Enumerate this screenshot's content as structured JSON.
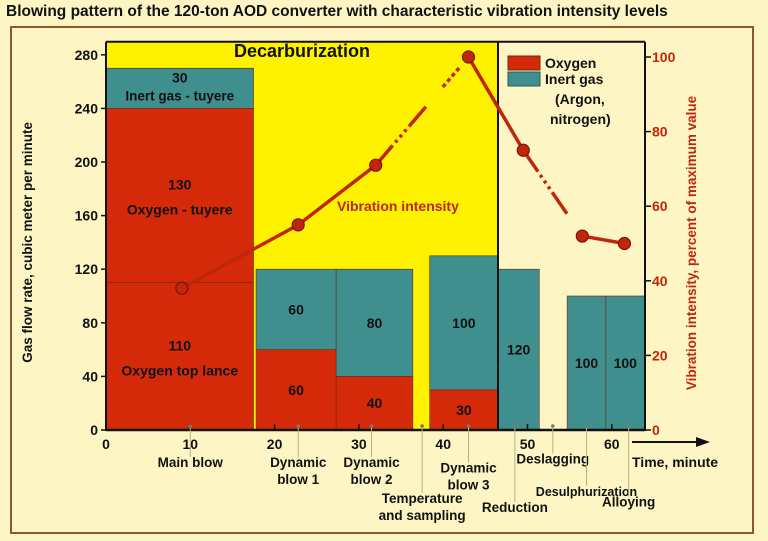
{
  "title": "Blowing pattern of the 120-ton AOD converter with characteristic vibration intensity levels",
  "chart_data": {
    "type": "bar",
    "ylabel": "Gas flow rate, cubic meter per minute",
    "y2label": "Vibration intensity, percent of maximum value",
    "xlabel": "Time, minute",
    "xlim": [
      0,
      65
    ],
    "ylim": [
      0,
      280
    ],
    "y2lim": [
      0,
      100
    ],
    "xticks": [
      0,
      10,
      20,
      30,
      40,
      50,
      60
    ],
    "yticks": [
      0,
      40,
      80,
      120,
      160,
      200,
      240,
      280
    ],
    "y2ticks": [
      0,
      20,
      40,
      60,
      80,
      100
    ],
    "region": {
      "label": "Decarburization",
      "x": [
        0,
        46.5
      ],
      "color": "#fff200"
    },
    "legend": {
      "position": "top-right",
      "items": [
        {
          "label": "Oxygen",
          "color": "#d42a0a"
        },
        {
          "label": "Inert gas (Argon, nitrogen)",
          "color": "#3f8f8f"
        }
      ]
    },
    "colors": {
      "oxygen": "#d42a0a",
      "inert": "#3f8f8f",
      "vibration": "#c0260a"
    },
    "segments": [
      {
        "x": [
          0,
          17.5
        ],
        "stack": [
          {
            "gas": "oxygen",
            "value": 110,
            "label": "110",
            "sub": "Oxygen top lance"
          },
          {
            "gas": "oxygen",
            "value": 130,
            "label": "130",
            "sub": "Oxygen - tuyere"
          },
          {
            "gas": "inert",
            "value": 30,
            "label": "30",
            "sub": "Inert gas - tuyere"
          }
        ]
      },
      {
        "x": [
          17.8,
          27.3
        ],
        "stack": [
          {
            "gas": "oxygen",
            "value": 60,
            "label": "60"
          },
          {
            "gas": "inert",
            "value": 60,
            "label": "60"
          }
        ]
      },
      {
        "x": [
          27.3,
          36.4
        ],
        "stack": [
          {
            "gas": "oxygen",
            "value": 40,
            "label": "40"
          },
          {
            "gas": "inert",
            "value": 80,
            "label": "80"
          }
        ]
      },
      {
        "x": [
          38.4,
          46.5
        ],
        "stack": [
          {
            "gas": "oxygen",
            "value": 30,
            "label": "30"
          },
          {
            "gas": "inert",
            "value": 100,
            "label": "100"
          }
        ]
      },
      {
        "x": [
          46.5,
          51.4
        ],
        "stack": [
          {
            "gas": "inert",
            "value": 120,
            "label": "120"
          }
        ]
      },
      {
        "x": [
          54.7,
          59.3
        ],
        "stack": [
          {
            "gas": "inert",
            "value": 100,
            "label": "100"
          }
        ]
      },
      {
        "x": [
          59.3,
          63.9
        ],
        "stack": [
          {
            "gas": "inert",
            "value": 100,
            "label": "100"
          }
        ]
      }
    ],
    "vibration": {
      "label": "Vibration intensity",
      "points": [
        [
          9,
          38
        ],
        [
          22.8,
          55
        ],
        [
          32,
          71
        ],
        [
          43,
          100
        ],
        [
          49.5,
          75
        ],
        [
          56.5,
          52
        ],
        [
          61.5,
          50
        ]
      ],
      "dotted_between": [
        [
          2,
          3
        ],
        [
          4,
          5
        ]
      ]
    },
    "phases": [
      {
        "label": [
          "Main blow"
        ],
        "x": 10,
        "row": 0
      },
      {
        "label": [
          "Dynamic",
          "blow 1"
        ],
        "x": 22.8,
        "row": 0
      },
      {
        "label": [
          "Dynamic",
          "blow 2"
        ],
        "x": 31.5,
        "row": 0
      },
      {
        "label": [
          "Temperature",
          "and sampling"
        ],
        "x": 37.5,
        "row": 2
      },
      {
        "label": [
          "Dynamic",
          "blow 3"
        ],
        "x": 43,
        "row": 0.3
      },
      {
        "label": [
          "Reduction"
        ],
        "x": 48.5,
        "row": 2.5
      },
      {
        "label": [
          "Deslagging"
        ],
        "x": 53,
        "row": -0.2
      },
      {
        "label": [
          "Desulphurization"
        ],
        "x": 57,
        "row": 1.6
      },
      {
        "label": [
          "Alloying"
        ],
        "x": 62,
        "row": 2.2
      }
    ]
  }
}
